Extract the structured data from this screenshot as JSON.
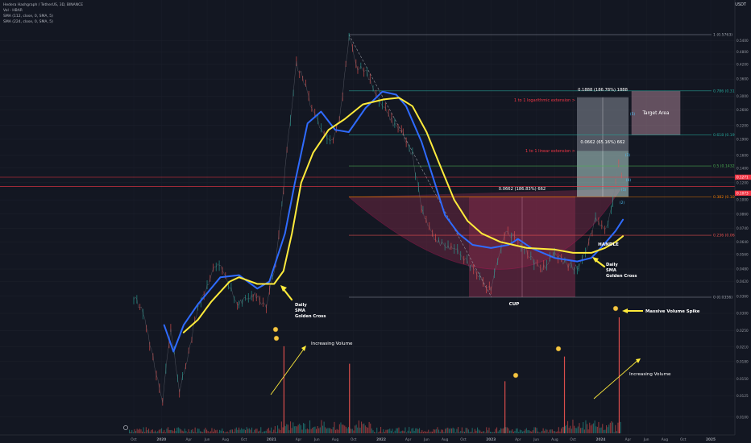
{
  "header": {
    "symbol_line": "Hedera Hashgraph / TetherUS, 3D, BINANCE",
    "volume_line": "Vol - HBAR",
    "sma1_line": "SMA (112, close, 0, SMA, 5)",
    "sma2_line": "SMA (224, close, 0, SMA, 5)",
    "currency": "USDT"
  },
  "colors": {
    "background": "#131722",
    "sma_fast": "#2f6bff",
    "sma_slow": "#ffeb3b",
    "cup_fill": "#7e2a48",
    "target_fill": "#c8cfda",
    "annotation": "#ffffff",
    "arrow": "#ffeb3b"
  },
  "chart_data": {
    "type": "candlestick",
    "pair": "HBAR/USDT",
    "timeframe": "3D",
    "x_axis": {
      "ticks": [
        "Oct",
        "2020",
        "Apr",
        "Jun",
        "Aug",
        "Oct",
        "2021",
        "Apr",
        "Jun",
        "Aug",
        "Oct",
        "2022",
        "Apr",
        "Jun",
        "Aug",
        "Oct",
        "2023",
        "Apr",
        "Jun",
        "Aug",
        "Oct",
        "2024",
        "Apr",
        "Jun",
        "Aug",
        "Oct",
        "2025"
      ],
      "range": [
        "2019-10",
        "2025-01"
      ]
    },
    "y_axis": {
      "scale": "log",
      "ticks": [
        0.54,
        0.48,
        0.42,
        0.36,
        0.3,
        0.26,
        0.22,
        0.19,
        0.16,
        0.14,
        0.12,
        0.1,
        0.086,
        0.074,
        0.064,
        0.056,
        0.048,
        0.042,
        0.036,
        0.03,
        0.025,
        0.021,
        0.018,
        0.015,
        0.0125,
        0.01
      ],
      "ticks_labels": [
        "0.5400",
        "0.4800",
        "0.4200",
        "0.3600",
        "0.3000",
        "0.2600",
        "0.2200",
        "0.1900",
        "0.1600",
        "0.1400",
        "0.1200",
        "0.1000",
        "0.0860",
        "0.0740",
        "0.0640",
        "0.0560",
        "0.0480",
        "0.0420",
        "0.0360",
        "0.0300",
        "0.0250",
        "0.0210",
        "0.0180",
        "0.0150",
        "0.0125",
        "0.0100"
      ],
      "range": [
        0.0092,
        0.6
      ]
    },
    "last_price": {
      "value": 0.1073,
      "label": "0.1073"
    },
    "level_price": {
      "value": 0.1271,
      "label": "0.1271"
    },
    "price_path": [
      [
        "2019-10-01",
        0.036
      ],
      [
        "2019-11-01",
        0.03
      ],
      [
        "2019-12-15",
        0.016
      ],
      [
        "2020-01-05",
        0.012
      ],
      [
        "2020-02-01",
        0.026
      ],
      [
        "2020-03-01",
        0.013
      ],
      [
        "2020-04-01",
        0.02
      ],
      [
        "2020-05-01",
        0.032
      ],
      [
        "2020-06-01",
        0.04
      ],
      [
        "2020-07-01",
        0.05
      ],
      [
        "2020-08-01",
        0.046
      ],
      [
        "2020-08-20",
        0.038
      ],
      [
        "2020-09-15",
        0.033
      ],
      [
        "2020-11-01",
        0.037
      ],
      [
        "2020-12-15",
        0.032
      ],
      [
        "2021-01-15",
        0.05
      ],
      [
        "2021-02-10",
        0.115
      ],
      [
        "2021-03-05",
        0.24
      ],
      [
        "2021-03-25",
        0.42
      ],
      [
        "2021-04-15",
        0.37
      ],
      [
        "2021-05-15",
        0.26
      ],
      [
        "2021-06-15",
        0.21
      ],
      [
        "2021-07-15",
        0.18
      ],
      [
        "2021-08-15",
        0.23
      ],
      [
        "2021-09-16",
        0.56
      ],
      [
        "2021-10-15",
        0.41
      ],
      [
        "2021-11-15",
        0.38
      ],
      [
        "2021-12-15",
        0.3
      ],
      [
        "2022-01-15",
        0.26
      ],
      [
        "2022-02-15",
        0.22
      ],
      [
        "2022-03-15",
        0.2
      ],
      [
        "2022-04-15",
        0.16
      ],
      [
        "2022-05-20",
        0.085
      ],
      [
        "2022-07-01",
        0.065
      ],
      [
        "2022-09-01",
        0.06
      ],
      [
        "2022-11-15",
        0.046
      ],
      [
        "2023-01-01",
        0.038
      ],
      [
        "2023-02-15",
        0.07
      ],
      [
        "2023-04-01",
        0.066
      ],
      [
        "2023-06-15",
        0.047
      ],
      [
        "2023-08-01",
        0.056
      ],
      [
        "2023-09-15",
        0.05
      ],
      [
        "2023-10-20",
        0.048
      ],
      [
        "2023-12-15",
        0.08
      ],
      [
        "2024-01-15",
        0.072
      ],
      [
        "2024-02-10",
        0.095
      ],
      [
        "2024-03-01",
        0.15
      ],
      [
        "2024-03-15",
        0.12
      ]
    ],
    "series": [
      {
        "name": "SMA (112, close, 0, SMA, 5)",
        "color": "#2f6bff",
        "points": [
          [
            "2020-01-10",
            0.0265
          ],
          [
            "2020-02-10",
            0.02
          ],
          [
            "2020-03-15",
            0.0265
          ],
          [
            "2020-05-01",
            0.033
          ],
          [
            "2020-07-15",
            0.044
          ],
          [
            "2020-09-15",
            0.045
          ],
          [
            "2020-11-15",
            0.039
          ],
          [
            "2020-12-25",
            0.042
          ],
          [
            "2021-02-15",
            0.07
          ],
          [
            "2021-03-20",
            0.12
          ],
          [
            "2021-05-01",
            0.225
          ],
          [
            "2021-06-15",
            0.255
          ],
          [
            "2021-08-01",
            0.21
          ],
          [
            "2021-09-15",
            0.205
          ],
          [
            "2021-11-10",
            0.265
          ],
          [
            "2022-01-05",
            0.315
          ],
          [
            "2022-02-20",
            0.305
          ],
          [
            "2022-03-25",
            0.27
          ],
          [
            "2022-05-15",
            0.185
          ],
          [
            "2022-06-20",
            0.13
          ],
          [
            "2022-08-01",
            0.085
          ],
          [
            "2022-09-15",
            0.07
          ],
          [
            "2022-11-01",
            0.062
          ],
          [
            "2023-01-01",
            0.06
          ],
          [
            "2023-03-01",
            0.062
          ],
          [
            "2023-04-01",
            0.066
          ],
          [
            "2023-05-15",
            0.06
          ],
          [
            "2023-08-01",
            0.054
          ],
          [
            "2023-10-15",
            0.052
          ],
          [
            "2023-12-01",
            0.054
          ],
          [
            "2024-01-15",
            0.063
          ],
          [
            "2024-02-20",
            0.072
          ],
          [
            "2024-03-15",
            0.081
          ]
        ]
      },
      {
        "name": "SMA (224, close, 0, SMA, 5)",
        "color": "#ffeb3b",
        "points": [
          [
            "2020-03-15",
            0.0245
          ],
          [
            "2020-05-01",
            0.028
          ],
          [
            "2020-06-15",
            0.034
          ],
          [
            "2020-08-15",
            0.042
          ],
          [
            "2020-09-15",
            0.044
          ],
          [
            "2020-11-15",
            0.041
          ],
          [
            "2021-01-10",
            0.041
          ],
          [
            "2021-02-10",
            0.047
          ],
          [
            "2021-03-10",
            0.07
          ],
          [
            "2021-04-10",
            0.12
          ],
          [
            "2021-05-20",
            0.165
          ],
          [
            "2021-07-10",
            0.21
          ],
          [
            "2021-09-01",
            0.235
          ],
          [
            "2021-11-01",
            0.275
          ],
          [
            "2022-01-10",
            0.29
          ],
          [
            "2022-03-01",
            0.295
          ],
          [
            "2022-04-15",
            0.27
          ],
          [
            "2022-06-01",
            0.205
          ],
          [
            "2022-07-15",
            0.145
          ],
          [
            "2022-09-01",
            0.1
          ],
          [
            "2022-10-15",
            0.08
          ],
          [
            "2022-12-01",
            0.07
          ],
          [
            "2023-02-01",
            0.064
          ],
          [
            "2023-05-01",
            0.06
          ],
          [
            "2023-08-01",
            0.059
          ],
          [
            "2023-10-01",
            0.057
          ],
          [
            "2023-12-01",
            0.057
          ],
          [
            "2024-01-15",
            0.06
          ],
          [
            "2024-02-20",
            0.064
          ],
          [
            "2024-03-15",
            0.068
          ]
        ]
      }
    ],
    "fib_levels": [
      {
        "ratio": "1",
        "value": 0.5763,
        "label": "1 (0.5763)",
        "color": "#9ea3ad",
        "dashed": false
      },
      {
        "ratio": "0.786",
        "value": 0.3175,
        "label": "0.786 (0.3175)",
        "color": "#26a69a",
        "dashed": false
      },
      {
        "ratio": "0.618",
        "value": 0.1989,
        "label": "0.618 (0.1989)",
        "color": "#26a69a",
        "dashed": false
      },
      {
        "ratio": "0.5",
        "value": 0.1432,
        "label": "0.5 (0.1432)",
        "color": "#4caf50",
        "dashed": false
      },
      {
        "ratio": "0.382",
        "value": 0.1031,
        "label": "0.382 (0.1031)",
        "color": "#f57c00",
        "dashed": false
      },
      {
        "ratio": "0.236",
        "value": 0.0687,
        "label": "0.236 (0.0687)",
        "color": "#ef5350",
        "dashed": false
      },
      {
        "ratio": "0",
        "value": 0.0356,
        "label": "0 (0.0356)",
        "color": "#9ea3ad",
        "dashed": false
      }
    ],
    "horizontal_lines": [
      {
        "value": 0.1271,
        "color": "#f23645"
      },
      {
        "value": 0.115,
        "color": "#f23645"
      }
    ],
    "measurements": [
      {
        "label": "0.1888 (186.78%) 1888"
      },
      {
        "label": "0.0662 (65.16%) 662"
      },
      {
        "label": "0.0662 (186.83%) 662"
      }
    ],
    "annotations": {
      "log_extension": "1 to 1 logarithmic extension >",
      "linear_extension": "1 to 1 linear extension >",
      "target_area": "Target Area",
      "cup": "CUP",
      "handle": "HANDLE",
      "golden_cross_1": [
        "Daily",
        "SMA",
        "Golden Cross"
      ],
      "golden_cross_2": [
        "Daily",
        "SMA",
        "Golden Cross"
      ],
      "increasing_volume_1": "Increasing Volume",
      "increasing_volume_2": "Increasing Volume",
      "massive_volume": "Massive Volume Spike",
      "wave_labels": [
        "(1)",
        "(2)",
        "(3)",
        "(4)",
        "(5)"
      ]
    },
    "volume_spikes": [
      {
        "date": "2021-02-10",
        "level": 0.72
      },
      {
        "date": "2021-09-16",
        "level": 0.55
      },
      {
        "date": "2023-02-15",
        "level": 0.38
      },
      {
        "date": "2023-09-01",
        "level": 0.62
      },
      {
        "date": "2024-03-01",
        "level": 1.0
      }
    ]
  }
}
